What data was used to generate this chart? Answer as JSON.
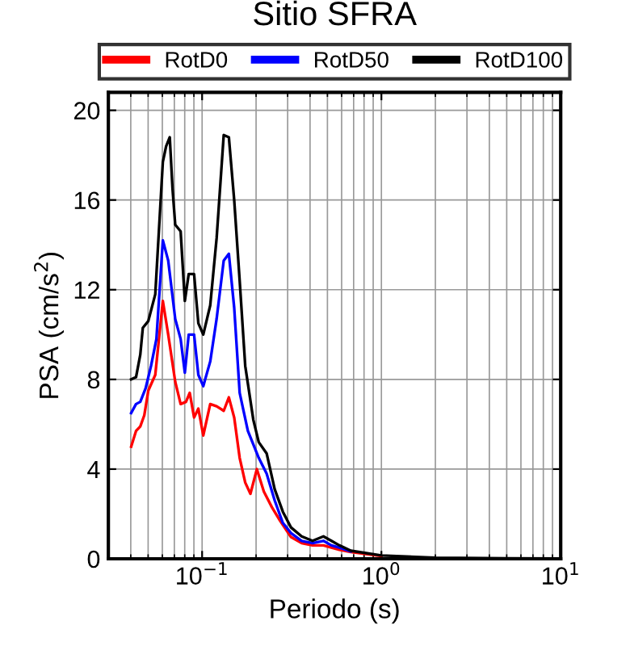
{
  "chart_data": {
    "type": "line",
    "title": "Sitio SFRA",
    "xlabel": "Periodo (s)",
    "ylabel": "PSA (cm/s$^{2}$)",
    "log": "x",
    "xlim": [
      0.03,
      10
    ],
    "ylim": [
      0,
      20.8
    ],
    "xticks": [
      {
        "value": 0.1,
        "label": "10$^{−1}$"
      },
      {
        "value": 1,
        "label": "10$^{0}$"
      },
      {
        "value": 10,
        "label": "10$^{1}$"
      }
    ],
    "yticks": [
      0,
      4,
      8,
      12,
      16,
      20
    ],
    "grid": true,
    "legend": "top",
    "line_style": "solid",
    "series": [
      {
        "name": "RotD0",
        "color": "#ff0000",
        "x": [
          0.0402,
          0.0428,
          0.0452,
          0.0476,
          0.0501,
          0.0548,
          0.0604,
          0.0647,
          0.0708,
          0.0759,
          0.0813,
          0.0853,
          0.0902,
          0.0953,
          0.1015,
          0.111,
          0.1205,
          0.132,
          0.141,
          0.151,
          0.162,
          0.174,
          0.186,
          0.202,
          0.221,
          0.245,
          0.272,
          0.313,
          0.359,
          0.413,
          0.475,
          0.526,
          0.583,
          0.675,
          1.0
        ],
        "values": [
          5.0,
          5.7,
          5.9,
          6.4,
          7.5,
          8.2,
          11.5,
          10.0,
          7.9,
          6.9,
          7.0,
          7.4,
          6.3,
          6.7,
          5.5,
          6.9,
          6.8,
          6.6,
          7.2,
          6.3,
          4.5,
          3.4,
          2.9,
          4.0,
          3.0,
          2.3,
          1.7,
          0.97,
          0.7,
          0.6,
          0.6,
          0.5,
          0.4,
          0.3,
          0.12
        ]
      },
      {
        "name": "RotD50",
        "color": "#0000ff",
        "x": [
          0.0402,
          0.0428,
          0.0452,
          0.0484,
          0.0519,
          0.0556,
          0.0604,
          0.0647,
          0.0708,
          0.0759,
          0.0801,
          0.0842,
          0.0902,
          0.0953,
          0.1015,
          0.111,
          0.1205,
          0.132,
          0.141,
          0.151,
          0.162,
          0.18,
          0.207,
          0.229,
          0.254,
          0.282,
          0.313,
          0.359,
          0.413,
          0.475,
          0.526,
          0.583,
          0.675
        ],
        "values": [
          6.5,
          6.9,
          7.0,
          7.6,
          8.6,
          9.8,
          14.2,
          13.3,
          10.7,
          9.8,
          8.3,
          10.0,
          10.0,
          8.2,
          7.7,
          8.8,
          10.7,
          13.3,
          13.6,
          11.2,
          7.4,
          5.7,
          4.5,
          3.8,
          2.6,
          1.6,
          1.15,
          0.8,
          0.7,
          0.8,
          0.6,
          0.5,
          0.33
        ]
      },
      {
        "name": "RotD100",
        "color": "#000000",
        "x": [
          0.0402,
          0.0428,
          0.0452,
          0.0467,
          0.0501,
          0.0548,
          0.0604,
          0.063,
          0.066,
          0.0684,
          0.0708,
          0.0759,
          0.0801,
          0.0842,
          0.0902,
          0.0953,
          0.1015,
          0.111,
          0.1205,
          0.132,
          0.141,
          0.151,
          0.162,
          0.174,
          0.193,
          0.207,
          0.229,
          0.254,
          0.282,
          0.313,
          0.359,
          0.413,
          0.475,
          0.526,
          0.583,
          0.675,
          1.0,
          2.0,
          5.0,
          10.0
        ],
        "values": [
          8.0,
          8.1,
          9.1,
          10.3,
          10.6,
          11.8,
          17.7,
          18.4,
          18.8,
          16.5,
          14.9,
          14.6,
          11.5,
          12.7,
          12.7,
          10.5,
          10.0,
          11.3,
          14.3,
          18.9,
          18.8,
          16.0,
          12.4,
          8.6,
          6.2,
          5.2,
          4.7,
          3.1,
          2.1,
          1.4,
          1.0,
          0.8,
          1.0,
          0.8,
          0.6,
          0.36,
          0.15,
          0.05,
          0.02,
          0.01
        ]
      }
    ]
  }
}
